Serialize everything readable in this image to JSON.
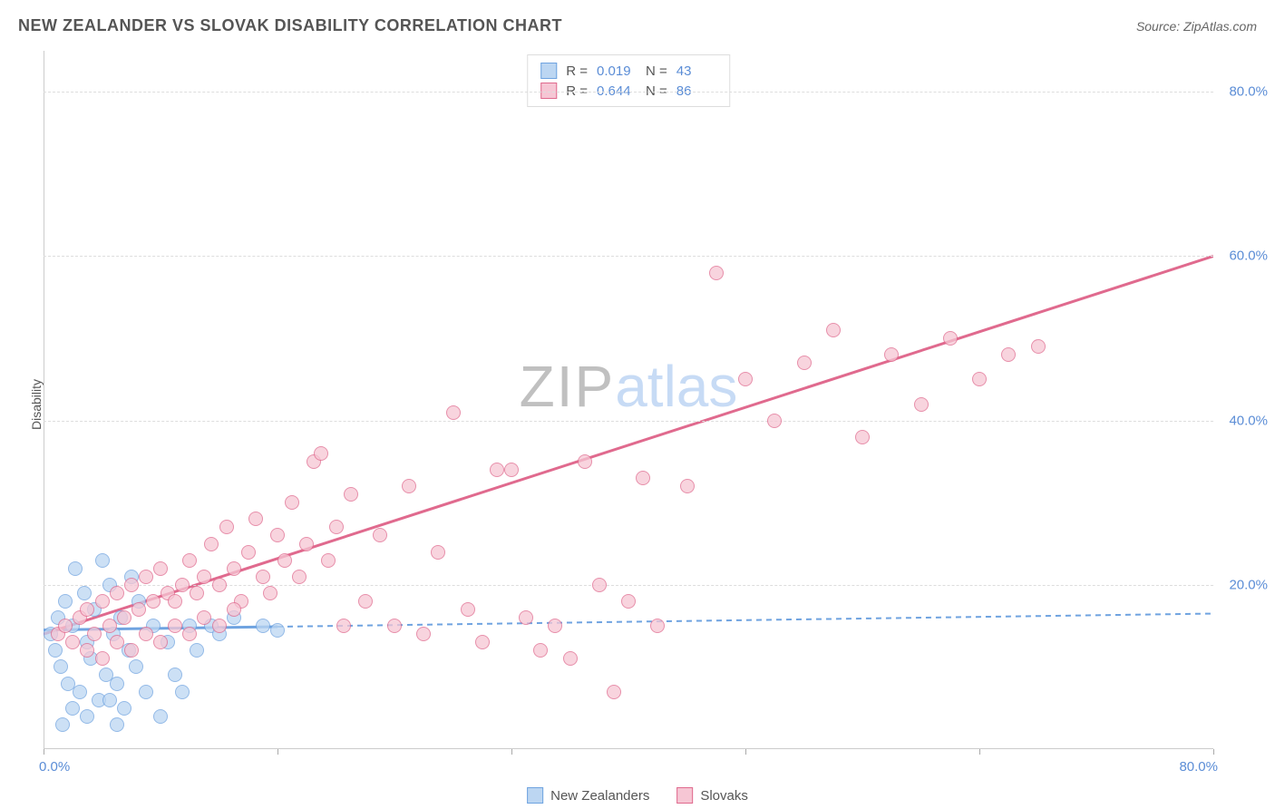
{
  "title": "NEW ZEALANDER VS SLOVAK DISABILITY CORRELATION CHART",
  "source_label": "Source: ZipAtlas.com",
  "ylabel": "Disability",
  "watermark": {
    "part1": "ZIP",
    "part2": "atlas"
  },
  "chart": {
    "type": "scatter",
    "xlim": [
      0,
      80
    ],
    "ylim": [
      0,
      85
    ],
    "x_tick_labels": {
      "left": "0.0%",
      "right": "80.0%"
    },
    "y_tick_labels": [
      "20.0%",
      "40.0%",
      "60.0%",
      "80.0%"
    ],
    "y_tick_values": [
      20,
      40,
      60,
      80
    ],
    "x_minor_tick_step": 16,
    "grid_color": "#dddddd",
    "background_color": "#ffffff",
    "axis_color": "#cccccc",
    "tick_label_color": "#5b8dd6",
    "point_radius": 8,
    "series": [
      {
        "name": "New Zealanders",
        "color_fill": "#bcd6f2",
        "color_stroke": "#6fa3e0",
        "R": "0.019",
        "N": "43",
        "trend": {
          "x1": 0,
          "y1": 14.5,
          "x2": 80,
          "y2": 16.5,
          "solid_until_x": 16
        },
        "points": [
          [
            0.5,
            14
          ],
          [
            0.8,
            12
          ],
          [
            1.0,
            16
          ],
          [
            1.2,
            10
          ],
          [
            1.5,
            18
          ],
          [
            1.7,
            8
          ],
          [
            2.0,
            15
          ],
          [
            2.2,
            22
          ],
          [
            2.5,
            7
          ],
          [
            2.8,
            19
          ],
          [
            3.0,
            13
          ],
          [
            3.2,
            11
          ],
          [
            3.5,
            17
          ],
          [
            3.8,
            6
          ],
          [
            4.0,
            23
          ],
          [
            4.3,
            9
          ],
          [
            4.5,
            20
          ],
          [
            4.8,
            14
          ],
          [
            5.0,
            8
          ],
          [
            5.3,
            16
          ],
          [
            5.5,
            5
          ],
          [
            5.8,
            12
          ],
          [
            6.0,
            21
          ],
          [
            6.3,
            10
          ],
          [
            6.5,
            18
          ],
          [
            7.0,
            7
          ],
          [
            7.5,
            15
          ],
          [
            8.0,
            4
          ],
          [
            8.5,
            13
          ],
          [
            9.0,
            9
          ],
          [
            1.3,
            3
          ],
          [
            2.0,
            5
          ],
          [
            3.0,
            4
          ],
          [
            4.5,
            6
          ],
          [
            5.0,
            3
          ],
          [
            9.5,
            7
          ],
          [
            10.0,
            15
          ],
          [
            10.5,
            12
          ],
          [
            11.5,
            15
          ],
          [
            12.0,
            14
          ],
          [
            13.0,
            16
          ],
          [
            15.0,
            15
          ],
          [
            16.0,
            14.5
          ]
        ]
      },
      {
        "name": "Slovaks",
        "color_fill": "#f6c6d4",
        "color_stroke": "#e06a8e",
        "R": "0.644",
        "N": "86",
        "trend": {
          "x1": 0,
          "y1": 14,
          "x2": 80,
          "y2": 60,
          "solid_until_x": 80
        },
        "points": [
          [
            1,
            14
          ],
          [
            1.5,
            15
          ],
          [
            2,
            13
          ],
          [
            2.5,
            16
          ],
          [
            3,
            17
          ],
          [
            3.5,
            14
          ],
          [
            4,
            18
          ],
          [
            4.5,
            15
          ],
          [
            5,
            19
          ],
          [
            5.5,
            16
          ],
          [
            6,
            20
          ],
          [
            6.5,
            17
          ],
          [
            7,
            21
          ],
          [
            7.5,
            18
          ],
          [
            8,
            22
          ],
          [
            8.5,
            19
          ],
          [
            9,
            18
          ],
          [
            9.5,
            20
          ],
          [
            10,
            23
          ],
          [
            10.5,
            19
          ],
          [
            11,
            21
          ],
          [
            11.5,
            25
          ],
          [
            12,
            20
          ],
          [
            12.5,
            27
          ],
          [
            13,
            22
          ],
          [
            13.5,
            18
          ],
          [
            14,
            24
          ],
          [
            14.5,
            28
          ],
          [
            15,
            21
          ],
          [
            15.5,
            19
          ],
          [
            16,
            26
          ],
          [
            16.5,
            23
          ],
          [
            17,
            30
          ],
          [
            17.5,
            21
          ],
          [
            18,
            25
          ],
          [
            18.5,
            35
          ],
          [
            19,
            36
          ],
          [
            19.5,
            23
          ],
          [
            20,
            27
          ],
          [
            20.5,
            15
          ],
          [
            21,
            31
          ],
          [
            22,
            18
          ],
          [
            23,
            26
          ],
          [
            24,
            15
          ],
          [
            25,
            32
          ],
          [
            26,
            14
          ],
          [
            27,
            24
          ],
          [
            28,
            41
          ],
          [
            29,
            17
          ],
          [
            30,
            13
          ],
          [
            31,
            34
          ],
          [
            32,
            34
          ],
          [
            33,
            16
          ],
          [
            34,
            12
          ],
          [
            35,
            15
          ],
          [
            36,
            11
          ],
          [
            37,
            35
          ],
          [
            38,
            20
          ],
          [
            39,
            7
          ],
          [
            40,
            18
          ],
          [
            41,
            33
          ],
          [
            42,
            15
          ],
          [
            44,
            32
          ],
          [
            46,
            58
          ],
          [
            48,
            45
          ],
          [
            50,
            40
          ],
          [
            52,
            47
          ],
          [
            54,
            51
          ],
          [
            56,
            38
          ],
          [
            58,
            48
          ],
          [
            60,
            42
          ],
          [
            62,
            50
          ],
          [
            64,
            45
          ],
          [
            66,
            48
          ],
          [
            68,
            49
          ],
          [
            3,
            12
          ],
          [
            4,
            11
          ],
          [
            5,
            13
          ],
          [
            6,
            12
          ],
          [
            7,
            14
          ],
          [
            8,
            13
          ],
          [
            9,
            15
          ],
          [
            10,
            14
          ],
          [
            11,
            16
          ],
          [
            12,
            15
          ],
          [
            13,
            17
          ]
        ]
      }
    ]
  },
  "legend_top_labels": {
    "R": "R =",
    "N": "N ="
  },
  "legend_bottom": [
    "New Zealanders",
    "Slovaks"
  ]
}
